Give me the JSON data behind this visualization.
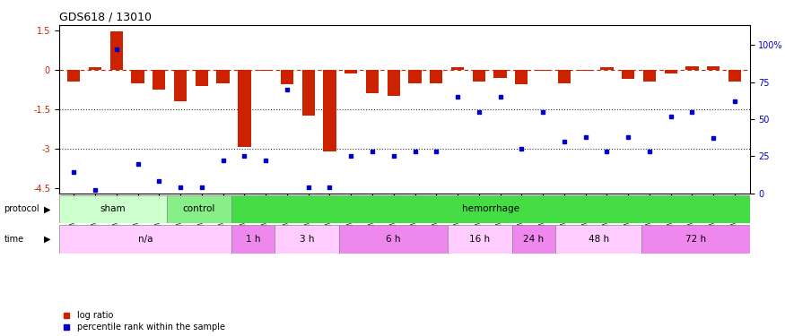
{
  "title": "GDS618 / 13010",
  "samples": [
    "GSM16636",
    "GSM16640",
    "GSM16641",
    "GSM16642",
    "GSM16643",
    "GSM16644",
    "GSM16637",
    "GSM16638",
    "GSM16639",
    "GSM16645",
    "GSM16646",
    "GSM16647",
    "GSM16648",
    "GSM16649",
    "GSM16650",
    "GSM16651",
    "GSM16652",
    "GSM16653",
    "GSM16654",
    "GSM16655",
    "GSM16656",
    "GSM16657",
    "GSM16658",
    "GSM16659",
    "GSM16660",
    "GSM16661",
    "GSM16662",
    "GSM16663",
    "GSM16664",
    "GSM16666",
    "GSM16667",
    "GSM16668"
  ],
  "log_ratio": [
    -0.45,
    0.1,
    1.45,
    -0.5,
    -0.75,
    -1.2,
    -0.6,
    -0.5,
    -2.95,
    -0.05,
    -0.55,
    -1.75,
    -3.1,
    -0.15,
    -0.9,
    -1.0,
    -0.5,
    -0.5,
    0.1,
    -0.45,
    -0.3,
    -0.55,
    -0.05,
    -0.5,
    -0.05,
    0.1,
    -0.35,
    -0.45,
    -0.15,
    0.12,
    0.15,
    -0.45
  ],
  "percentile": [
    14,
    2,
    97,
    20,
    8,
    4,
    4,
    22,
    25,
    22,
    70,
    4,
    4,
    25,
    28,
    25,
    28,
    28,
    65,
    55,
    65,
    30,
    55,
    35,
    38,
    28,
    38,
    28,
    52,
    55,
    37,
    62
  ],
  "bar_color": "#cc2200",
  "dot_color": "#0000cc",
  "ref_line_color": "#cc2200",
  "dotted_line_color": "#333333",
  "protocol_groups": [
    {
      "label": "sham",
      "start": 0,
      "end": 5,
      "color": "#ccffcc"
    },
    {
      "label": "control",
      "start": 5,
      "end": 8,
      "color": "#88ee88"
    },
    {
      "label": "hemorrhage",
      "start": 8,
      "end": 32,
      "color": "#44dd44"
    }
  ],
  "time_groups": [
    {
      "label": "n/a",
      "start": 0,
      "end": 8,
      "color": "#ffccff"
    },
    {
      "label": "1 h",
      "start": 8,
      "end": 10,
      "color": "#ee88ee"
    },
    {
      "label": "3 h",
      "start": 10,
      "end": 13,
      "color": "#ffccff"
    },
    {
      "label": "6 h",
      "start": 13,
      "end": 18,
      "color": "#ee88ee"
    },
    {
      "label": "16 h",
      "start": 18,
      "end": 21,
      "color": "#ffccff"
    },
    {
      "label": "24 h",
      "start": 21,
      "end": 23,
      "color": "#ee88ee"
    },
    {
      "label": "48 h",
      "start": 23,
      "end": 27,
      "color": "#ffccff"
    },
    {
      "label": "72 h",
      "start": 27,
      "end": 32,
      "color": "#ee88ee"
    }
  ],
  "ylim_left": [
    -4.7,
    1.7
  ],
  "ylim_right": [
    0,
    113.3
  ],
  "yticks_left": [
    1.5,
    0.0,
    -1.5,
    -3.0,
    -4.5
  ],
  "yticks_right": [
    0,
    25,
    50,
    75,
    100
  ],
  "ytick_labels_right": [
    "0",
    "25",
    "50",
    "75",
    "100%"
  ],
  "hline_y": [
    -1.5,
    -3.0
  ],
  "ref_line_y": 0,
  "bg_color": "#ffffff"
}
